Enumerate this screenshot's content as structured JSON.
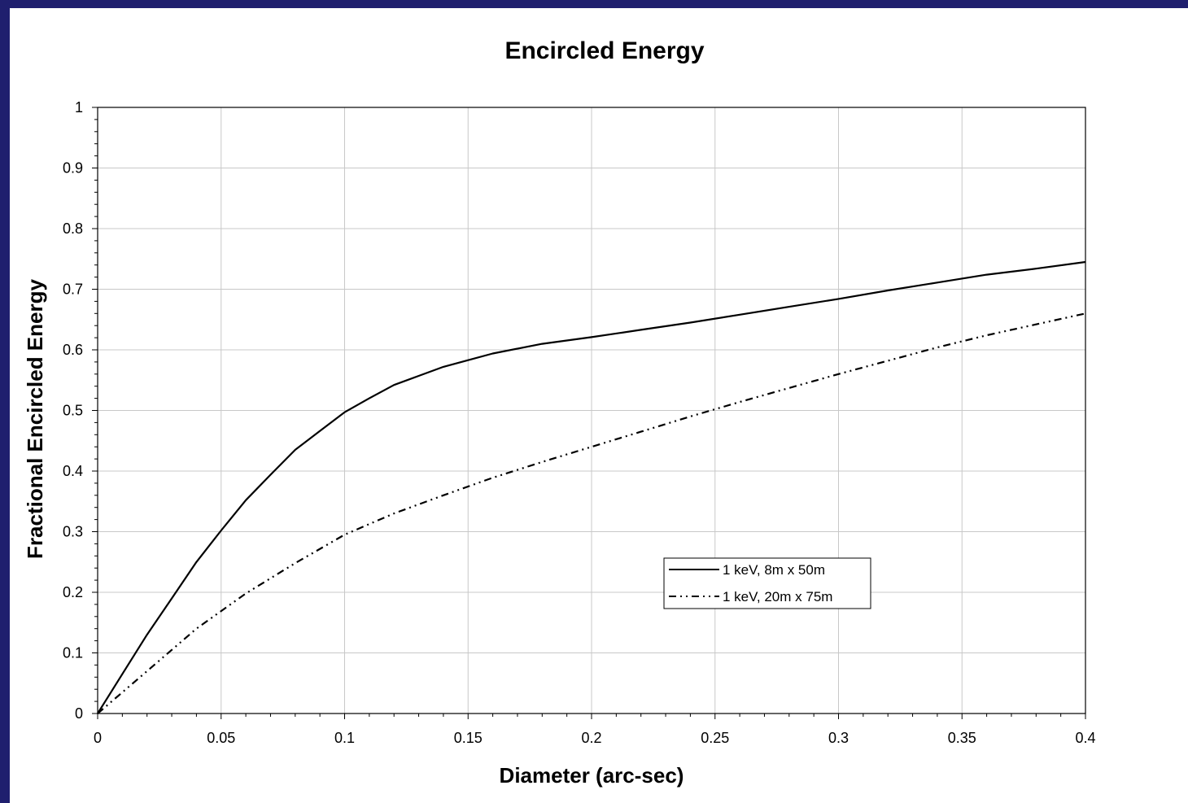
{
  "chart_data": {
    "type": "line",
    "title": "Encircled Energy",
    "xlabel": "Diameter (arc-sec)",
    "ylabel": "Fractional Encircled Energy",
    "xlim": [
      0,
      0.4
    ],
    "ylim": [
      0,
      1
    ],
    "x_ticks": [
      "0",
      "0.05",
      "0.1",
      "0.15",
      "0.2",
      "0.25",
      "0.3",
      "0.35",
      "0.4"
    ],
    "y_ticks": [
      "0",
      "0.1",
      "0.2",
      "0.3",
      "0.4",
      "0.5",
      "0.6",
      "0.7",
      "0.8",
      "0.9",
      "1"
    ],
    "grid": true,
    "legend_position": "center-right",
    "series": [
      {
        "name": "1 keV, 8m x 50m",
        "style": "solid",
        "color": "#000000",
        "x": [
          0,
          0.01,
          0.02,
          0.03,
          0.04,
          0.05,
          0.06,
          0.07,
          0.08,
          0.09,
          0.1,
          0.11,
          0.12,
          0.13,
          0.14,
          0.15,
          0.16,
          0.18,
          0.2,
          0.22,
          0.24,
          0.26,
          0.28,
          0.3,
          0.32,
          0.34,
          0.36,
          0.38,
          0.4
        ],
        "y": [
          0,
          0.065,
          0.13,
          0.19,
          0.25,
          0.302,
          0.352,
          0.394,
          0.435,
          0.466,
          0.497,
          0.52,
          0.542,
          0.557,
          0.572,
          0.583,
          0.594,
          0.61,
          0.621,
          0.633,
          0.645,
          0.658,
          0.671,
          0.684,
          0.698,
          0.711,
          0.724,
          0.734,
          0.745
        ]
      },
      {
        "name": "1 keV, 20m x 75m",
        "style": "dash-dot-dot",
        "color": "#000000",
        "x": [
          0,
          0.02,
          0.04,
          0.06,
          0.08,
          0.1,
          0.12,
          0.14,
          0.16,
          0.18,
          0.2,
          0.22,
          0.24,
          0.26,
          0.28,
          0.3,
          0.32,
          0.34,
          0.36,
          0.38,
          0.4
        ],
        "y": [
          0,
          0.07,
          0.14,
          0.198,
          0.248,
          0.295,
          0.33,
          0.36,
          0.389,
          0.415,
          0.44,
          0.465,
          0.49,
          0.514,
          0.537,
          0.56,
          0.582,
          0.604,
          0.624,
          0.642,
          0.66
        ]
      }
    ]
  }
}
